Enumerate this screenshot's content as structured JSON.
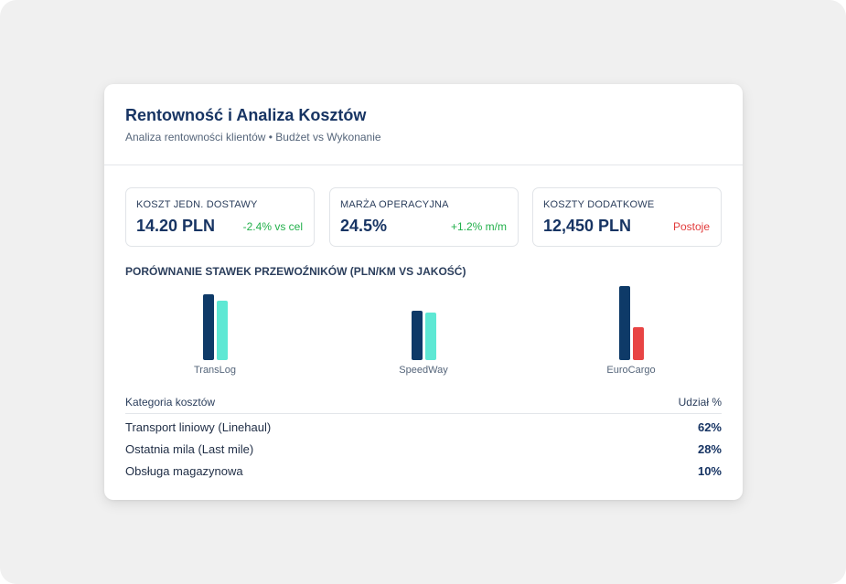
{
  "colors": {
    "primary": "#173463",
    "navy_bar": "#0e3a68",
    "teal_bar": "#5ee8d4",
    "red_bar": "#e84444",
    "positive": "#22b04b",
    "negative": "#e23b3b"
  },
  "header": {
    "title": "Rentowność i Analiza Kosztów",
    "subtitle": "Analiza rentowności klientów • Budżet vs Wykonanie"
  },
  "kpis": [
    {
      "label": "KOSZT JEDN. DOSTAWY",
      "value": "14.20 PLN",
      "delta": "-2.4% vs cel",
      "tone": "positive"
    },
    {
      "label": "MARŻA OPERACYJNA",
      "value": "24.5%",
      "delta": "+1.2% m/m",
      "tone": "positive"
    },
    {
      "label": "KOSZTY DODATKOWE",
      "value": "12,450 PLN",
      "delta": "Postoje",
      "tone": "negative"
    }
  ],
  "carrier_section": {
    "title": "PORÓWNANIE STAWEK PRZEWOŹNIKÓW (PLN/KM VS JAKOŚĆ)"
  },
  "chart_data": {
    "type": "bar",
    "categories": [
      "TransLog",
      "SpeedWay",
      "EuroCargo"
    ],
    "series": [
      {
        "values": [
          80,
          60,
          90
        ]
      },
      {
        "values": [
          72,
          58,
          40
        ]
      }
    ],
    "ylim": [
      0,
      100
    ],
    "grid": false
  },
  "cost_table": {
    "header_left": "Kategoria kosztów",
    "header_right": "Udział %",
    "rows": [
      {
        "category": "Transport liniowy (Linehaul)",
        "share": "62%"
      },
      {
        "category": "Ostatnia mila (Last mile)",
        "share": "28%"
      },
      {
        "category": "Obsługa magazynowa",
        "share": "10%"
      }
    ]
  }
}
